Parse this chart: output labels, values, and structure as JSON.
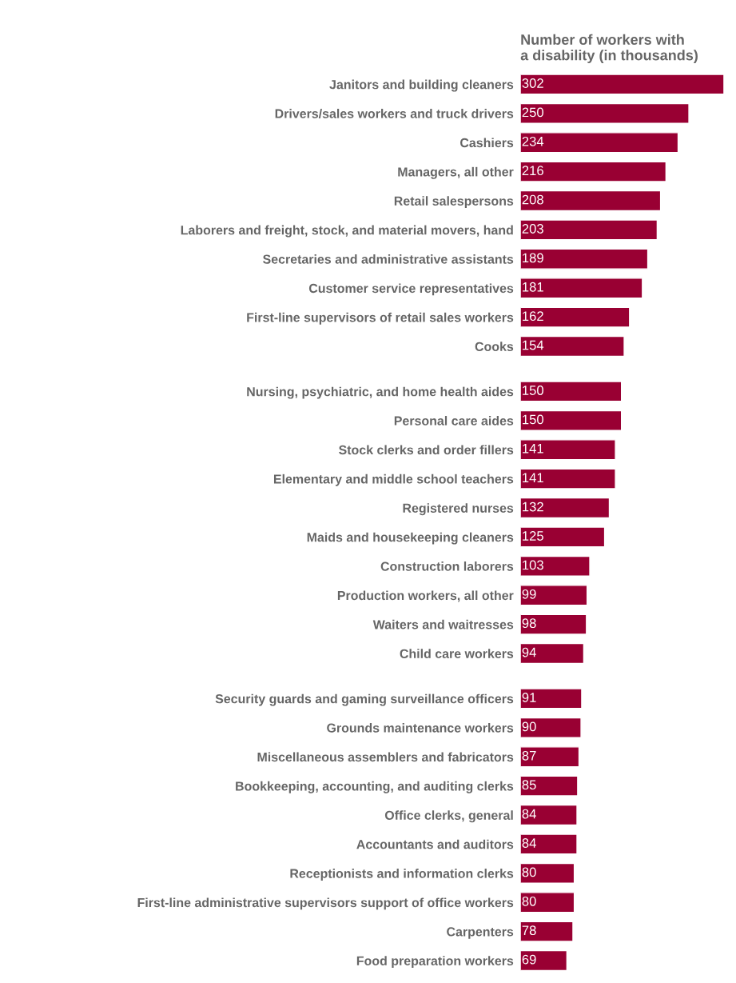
{
  "chart_data": {
    "type": "bar",
    "orientation": "horizontal",
    "data_labels": true,
    "grid": false,
    "legend": false,
    "title": "Number of workers with\na disability (in thousands)",
    "categories": [
      "Janitors and building cleaners",
      "Drivers/sales workers and truck drivers",
      "Cashiers",
      "Managers, all other",
      "Retail salespersons",
      "Laborers and freight, stock, and material movers, hand",
      "Secretaries and administrative assistants",
      "Customer service representatives",
      "First-line supervisors of retail sales workers",
      "Cooks",
      "Nursing, psychiatric, and home health aides",
      "Personal care aides",
      "Stock clerks and order fillers",
      "Elementary and middle school teachers",
      "Registered nurses",
      "Maids and housekeeping cleaners",
      "Construction laborers",
      "Production workers, all other",
      "Waiters and waitresses",
      "Child care workers",
      "Security guards and gaming surveillance officers",
      "Grounds maintenance workers",
      "Miscellaneous assemblers and fabricators",
      "Bookkeeping, accounting, and auditing clerks",
      "Office clerks, general",
      "Accountants and auditors",
      "Receptionists and information clerks",
      "First-line administrative supervisors support of office workers",
      "Carpenters",
      "Food preparation workers"
    ],
    "values": [
      302,
      250,
      234,
      216,
      208,
      203,
      189,
      181,
      162,
      154,
      150,
      150,
      141,
      141,
      132,
      125,
      103,
      99,
      98,
      94,
      91,
      90,
      87,
      85,
      84,
      84,
      80,
      80,
      78,
      69
    ],
    "color": "#990033"
  }
}
